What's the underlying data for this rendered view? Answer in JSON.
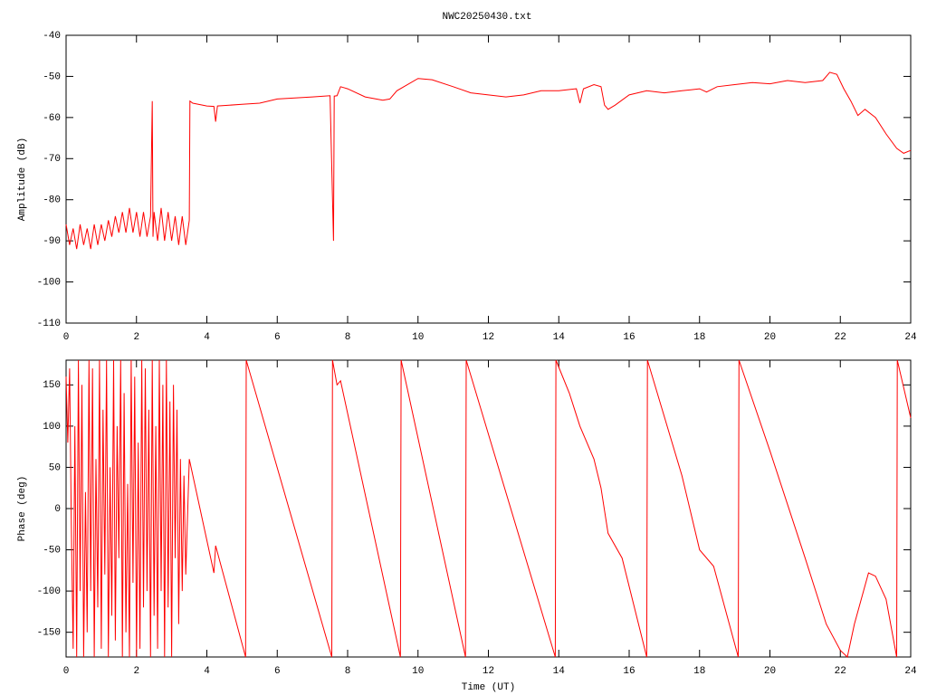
{
  "chart_data": [
    {
      "type": "line",
      "title": "NWC20250430.txt",
      "ylabel": "Amplitude (dB)",
      "color": "#ff0000",
      "xlim": [
        0,
        24
      ],
      "xticks": [
        0,
        2,
        4,
        6,
        8,
        10,
        12,
        14,
        16,
        18,
        20,
        22,
        24
      ],
      "ylim": [
        -110,
        -40
      ],
      "yticks": [
        -110,
        -100,
        -90,
        -80,
        -70,
        -60,
        -50,
        -40
      ],
      "x": [
        0,
        0.1,
        0.2,
        0.3,
        0.4,
        0.5,
        0.6,
        0.7,
        0.8,
        0.9,
        1.0,
        1.1,
        1.2,
        1.3,
        1.4,
        1.5,
        1.6,
        1.7,
        1.8,
        1.9,
        2.0,
        2.1,
        2.2,
        2.3,
        2.4,
        2.45,
        2.47,
        2.5,
        2.6,
        2.7,
        2.8,
        2.9,
        3.0,
        3.1,
        3.2,
        3.3,
        3.4,
        3.5,
        3.52,
        3.6,
        4.0,
        4.2,
        4.25,
        4.3,
        5.0,
        5.5,
        6.0,
        7.0,
        7.5,
        7.6,
        7.62,
        7.7,
        7.8,
        8.0,
        8.5,
        9.0,
        9.2,
        9.4,
        10.0,
        10.4,
        11.0,
        11.5,
        12,
        12.5,
        13,
        13.5,
        14,
        14.5,
        14.6,
        14.7,
        15,
        15.2,
        15.3,
        15.4,
        15.6,
        16,
        16.5,
        17,
        17.5,
        18,
        18.2,
        18.5,
        19,
        19.5,
        20,
        20.5,
        21,
        21.5,
        21.7,
        21.9,
        22.1,
        22.3,
        22.5,
        22.7,
        23.0,
        23.3,
        23.6,
        23.8,
        24
      ],
      "values": [
        -86,
        -91,
        -87,
        -92,
        -86,
        -91,
        -87,
        -92,
        -86,
        -91,
        -86,
        -90,
        -85,
        -89,
        -84,
        -88,
        -83,
        -88,
        -82,
        -88,
        -83,
        -89,
        -83,
        -89,
        -84,
        -56,
        -89,
        -83,
        -90,
        -82,
        -90,
        -83,
        -90,
        -84,
        -91,
        -84,
        -91,
        -85,
        -56,
        -56.5,
        -57.2,
        -57.3,
        -61,
        -57.2,
        -56.8,
        -56.5,
        -55.5,
        -55,
        -54.7,
        -90,
        -54.8,
        -54.7,
        -52.5,
        -53,
        -55,
        -55.8,
        -55.5,
        -53.5,
        -50.5,
        -50.8,
        -52.5,
        -54,
        -54.5,
        -55,
        -54.5,
        -53.5,
        -53.5,
        -53,
        -56.5,
        -53,
        -52,
        -52.5,
        -57,
        -58,
        -57,
        -54.5,
        -53.5,
        -54,
        -53.5,
        -53,
        -53.8,
        -52.5,
        -52,
        -51.5,
        -51.8,
        -51,
        -51.5,
        -51,
        -49,
        -49.5,
        -53,
        -56,
        -59.5,
        -58,
        -60,
        -64,
        -67.5,
        -68.7,
        -68
      ]
    },
    {
      "type": "line",
      "ylabel": "Phase (deg)",
      "xlabel": "Time (UT)",
      "color": "#ff0000",
      "xlim": [
        0,
        24
      ],
      "xticks": [
        0,
        2,
        4,
        6,
        8,
        10,
        12,
        14,
        16,
        18,
        20,
        22,
        24
      ],
      "ylim": [
        -180,
        180
      ],
      "yticks": [
        -150,
        -100,
        -50,
        0,
        50,
        100,
        150
      ],
      "x": [
        0,
        0.05,
        0.1,
        0.15,
        0.2,
        0.25,
        0.3,
        0.35,
        0.4,
        0.45,
        0.5,
        0.55,
        0.6,
        0.65,
        0.7,
        0.75,
        0.8,
        0.85,
        0.9,
        0.95,
        1.0,
        1.05,
        1.1,
        1.15,
        1.2,
        1.25,
        1.3,
        1.35,
        1.4,
        1.45,
        1.5,
        1.55,
        1.6,
        1.65,
        1.7,
        1.75,
        1.8,
        1.85,
        1.9,
        1.95,
        2.0,
        2.05,
        2.1,
        2.15,
        2.2,
        2.25,
        2.3,
        2.35,
        2.4,
        2.45,
        2.5,
        2.55,
        2.6,
        2.65,
        2.7,
        2.75,
        2.8,
        2.85,
        2.9,
        2.95,
        3.0,
        3.05,
        3.1,
        3.15,
        3.2,
        3.25,
        3.3,
        3.35,
        3.4,
        3.5,
        4.2,
        4.25,
        5.1,
        5.12,
        7.55,
        7.57,
        7.7,
        7.8,
        9.5,
        9.52,
        11.35,
        11.37,
        13.9,
        13.92,
        14.3,
        14.6,
        15.0,
        15.2,
        15.4,
        15.8,
        16.5,
        16.52,
        17.5,
        18.0,
        18.4,
        19.1,
        19.12,
        20,
        21,
        21.6,
        22.0,
        22.2,
        22.4,
        22.8,
        23.0,
        23.3,
        23.6,
        23.62,
        24
      ],
      "values": [
        160,
        80,
        170,
        -20,
        -170,
        100,
        -180,
        180,
        -100,
        150,
        -180,
        20,
        -150,
        180,
        -100,
        170,
        -180,
        60,
        -120,
        180,
        -170,
        120,
        -80,
        180,
        -180,
        50,
        -130,
        180,
        -160,
        100,
        -60,
        180,
        -180,
        140,
        -150,
        30,
        -180,
        180,
        -90,
        160,
        -180,
        80,
        -170,
        180,
        -120,
        170,
        -100,
        120,
        -180,
        180,
        -130,
        100,
        -170,
        180,
        -100,
        150,
        -180,
        180,
        -120,
        130,
        -180,
        150,
        -60,
        120,
        -140,
        60,
        -100,
        40,
        -80,
        60,
        -78,
        -45,
        -180,
        180,
        -180,
        180,
        150,
        155,
        -180,
        180,
        -180,
        180,
        -180,
        180,
        140,
        100,
        60,
        25,
        -30,
        -60,
        -180,
        180,
        40,
        -50,
        -70,
        -180,
        180,
        70,
        -60,
        -140,
        -172,
        -180,
        -140,
        -78,
        -82,
        -110,
        -180,
        180,
        110
      ]
    }
  ]
}
